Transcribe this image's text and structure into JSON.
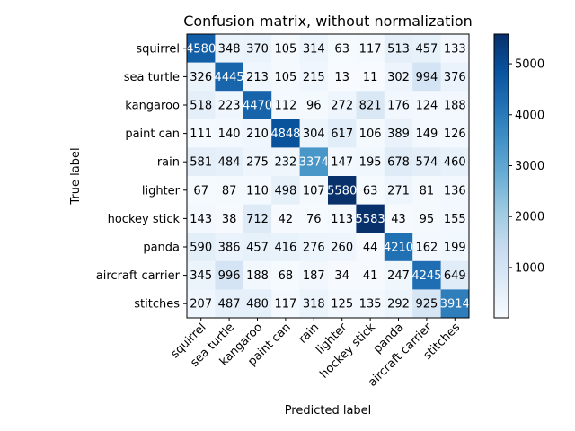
{
  "chart_data": {
    "type": "heatmap",
    "title": "Confusion matrix, without normalization",
    "xlabel": "Predicted label",
    "ylabel": "True label",
    "classes": [
      "squirrel",
      "sea turtle",
      "kangaroo",
      "paint can",
      "rain",
      "lighter",
      "hockey stick",
      "panda",
      "aircraft carrier",
      "stitches"
    ],
    "matrix": [
      [
        4580,
        348,
        370,
        105,
        314,
        63,
        117,
        513,
        457,
        133
      ],
      [
        326,
        4445,
        213,
        105,
        215,
        13,
        11,
        302,
        994,
        376
      ],
      [
        518,
        223,
        4470,
        112,
        96,
        272,
        821,
        176,
        124,
        188
      ],
      [
        111,
        140,
        210,
        4848,
        304,
        617,
        106,
        389,
        149,
        126
      ],
      [
        581,
        484,
        275,
        232,
        3374,
        147,
        195,
        678,
        574,
        460
      ],
      [
        67,
        87,
        110,
        498,
        107,
        5580,
        63,
        271,
        81,
        136
      ],
      [
        143,
        38,
        712,
        42,
        76,
        113,
        5583,
        43,
        95,
        155
      ],
      [
        590,
        386,
        457,
        416,
        276,
        260,
        44,
        4210,
        162,
        199
      ],
      [
        345,
        996,
        188,
        68,
        187,
        34,
        41,
        247,
        4245,
        649
      ],
      [
        207,
        487,
        480,
        117,
        318,
        125,
        135,
        292,
        925,
        3914
      ]
    ],
    "colorbar": {
      "cmap": "Blues",
      "min": 11,
      "max": 5583,
      "ticks": [
        1000,
        2000,
        3000,
        4000,
        5000
      ]
    },
    "grid": false
  }
}
